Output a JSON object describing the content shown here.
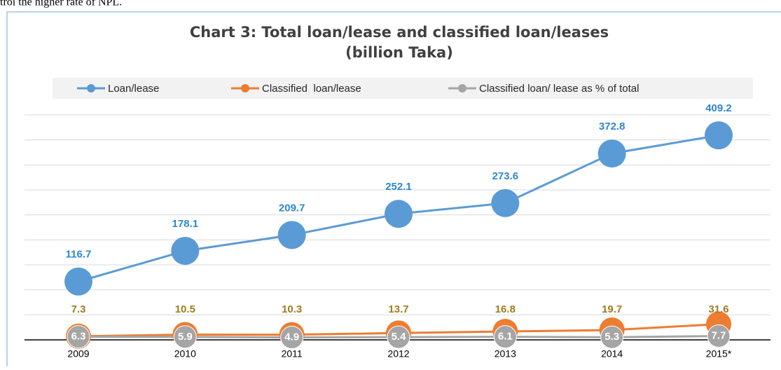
{
  "caption_above": "trol the higher rate of NPL.",
  "chart_data": {
    "type": "line",
    "title": "Chart 3: Total loan/lease and classified loan/leases",
    "subtitle": "(billion Taka)",
    "categories": [
      "2009",
      "2010",
      "2011",
      "2012",
      "2013",
      "2014",
      "2015*"
    ],
    "series": [
      {
        "name": "Loan/lease",
        "color": "#5b9bd5",
        "label_color": "#2e86d0",
        "values": [
          116.7,
          178.1,
          209.7,
          252.1,
          273.6,
          372.8,
          409.2
        ]
      },
      {
        "name": "Classified  loan/lease",
        "color": "#ed7d31",
        "label_color": "#a07c1e",
        "values": [
          7.3,
          10.5,
          10.3,
          13.7,
          16.8,
          19.7,
          31.6
        ]
      },
      {
        "name": "Classified loan/ lease as % of total",
        "color": "#a5a5a5",
        "label_color": "#ffffff",
        "values": [
          6.3,
          5.9,
          4.9,
          5.4,
          6.1,
          5.3,
          7.7
        ]
      }
    ],
    "ylim": [
      0,
      450
    ],
    "yticks": [
      0,
      50,
      100,
      150,
      200,
      250,
      300,
      350,
      400,
      450
    ],
    "grid": true,
    "show_tick_labels": false,
    "legend": "top"
  }
}
